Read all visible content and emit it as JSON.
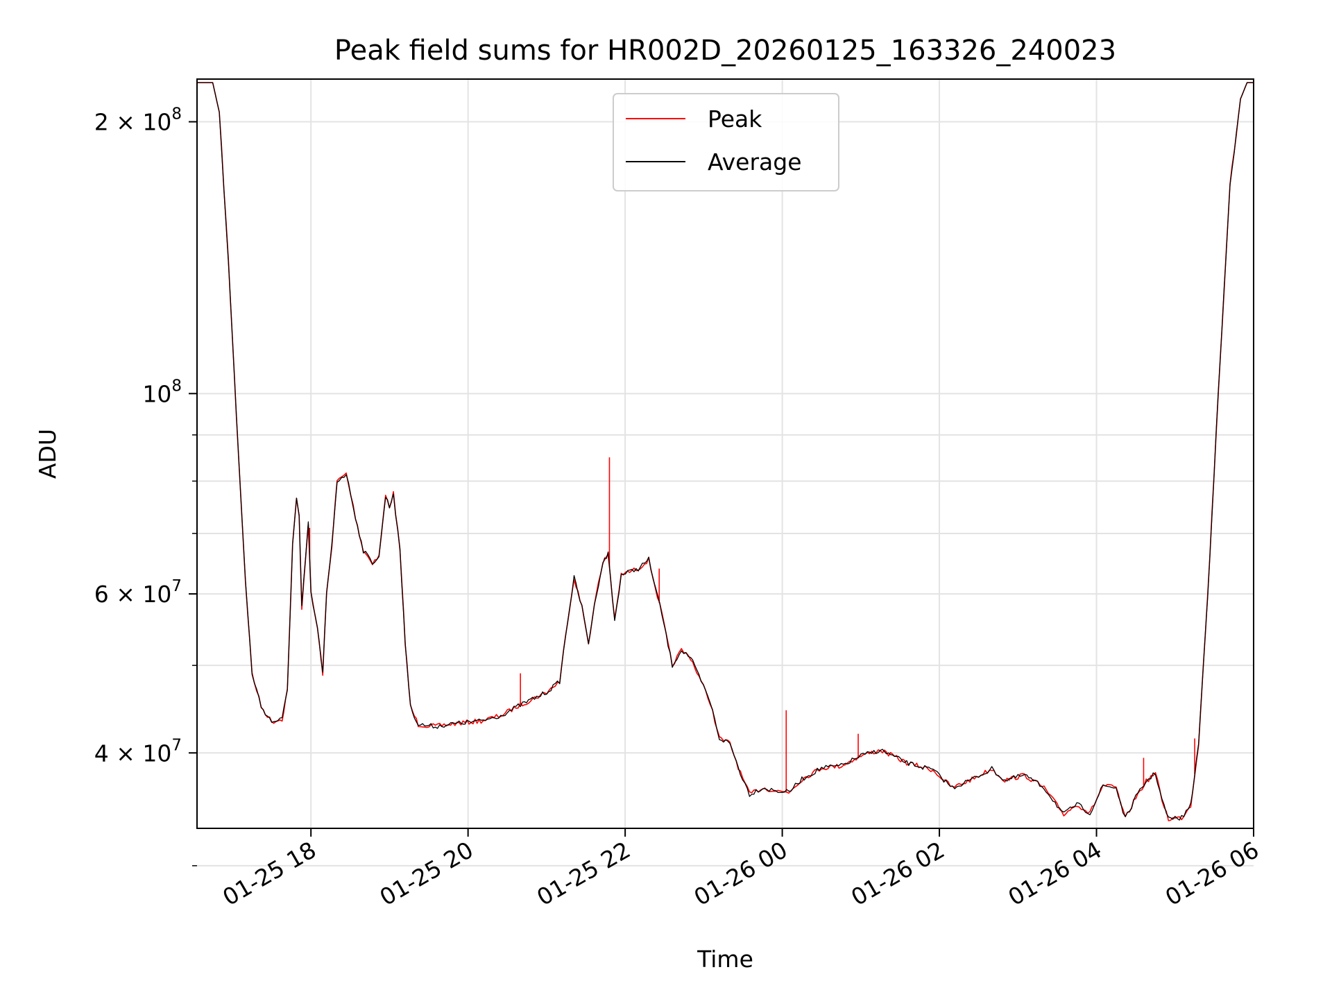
{
  "chart_data": {
    "type": "line",
    "title": "Peak field sums for HR002D_20260125_163326_240023",
    "xlabel": "Time",
    "ylabel": "ADU",
    "yscale": "log",
    "xlim": [
      "2026-01-25 16:33",
      "2026-01-26 06:00"
    ],
    "ylim": [
      33000000,
      223000000
    ],
    "x_ticks": [
      {
        "time": "2026-01-25 18:00",
        "label": "01-25 18"
      },
      {
        "time": "2026-01-25 20:00",
        "label": "01-25 20"
      },
      {
        "time": "2026-01-25 22:00",
        "label": "01-25 22"
      },
      {
        "time": "2026-01-26 00:00",
        "label": "01-26 00"
      },
      {
        "time": "2026-01-26 02:00",
        "label": "01-26 02"
      },
      {
        "time": "2026-01-26 04:00",
        "label": "01-26 04"
      },
      {
        "time": "2026-01-26 06:00",
        "label": "01-26 06"
      }
    ],
    "y_major_ticks": [
      {
        "value": 100000000,
        "mantissa": "",
        "base": "10",
        "exp": "8"
      },
      {
        "value": 200000000,
        "mantissa": "2",
        "base": "10",
        "exp": "8"
      },
      {
        "value": 60000000,
        "mantissa": "6",
        "base": "10",
        "exp": "7"
      },
      {
        "value": 40000000,
        "mantissa": "4",
        "base": "10",
        "exp": "7"
      }
    ],
    "y_minor_ticks": [
      30000000,
      50000000,
      70000000,
      80000000,
      90000000
    ],
    "grid": true,
    "legend_position": "upper center",
    "series": [
      {
        "name": "Peak",
        "color": "#ff0000",
        "points": [
          [
            "2026-01-25 16:33",
            221000000
          ],
          [
            "2026-01-25 16:45",
            221000000
          ],
          [
            "2026-01-25 16:50",
            205000000
          ],
          [
            "2026-01-25 16:57",
            140000000
          ],
          [
            "2026-01-25 17:03",
            95000000
          ],
          [
            "2026-01-25 17:10",
            62000000
          ],
          [
            "2026-01-25 17:15",
            49000000
          ],
          [
            "2026-01-25 17:22",
            45000000
          ],
          [
            "2026-01-25 17:30",
            43300000
          ],
          [
            "2026-01-25 17:38",
            43600000
          ],
          [
            "2026-01-25 17:42",
            47000000
          ],
          [
            "2026-01-25 17:46",
            68000000
          ],
          [
            "2026-01-25 17:49",
            76500000
          ],
          [
            "2026-01-25 17:51",
            73000000
          ],
          [
            "2026-01-25 17:53",
            58000000
          ],
          [
            "2026-01-25 17:56",
            66000000
          ],
          [
            "2026-01-25 17:58",
            72000000
          ],
          [
            "2026-01-25 18:00",
            60000000
          ],
          [
            "2026-01-25 18:05",
            55000000
          ],
          [
            "2026-01-25 18:09",
            49000000
          ],
          [
            "2026-01-25 18:12",
            60000000
          ],
          [
            "2026-01-25 18:16",
            68000000
          ],
          [
            "2026-01-25 18:20",
            80000000
          ],
          [
            "2026-01-25 18:27",
            81500000
          ],
          [
            "2026-01-25 18:34",
            73000000
          ],
          [
            "2026-01-25 18:40",
            67000000
          ],
          [
            "2026-01-25 18:47",
            65000000
          ],
          [
            "2026-01-25 18:52",
            66000000
          ],
          [
            "2026-01-25 18:57",
            77000000
          ],
          [
            "2026-01-25 19:00",
            75000000
          ],
          [
            "2026-01-25 19:03",
            77500000
          ],
          [
            "2026-01-25 19:08",
            67000000
          ],
          [
            "2026-01-25 19:12",
            53000000
          ],
          [
            "2026-01-25 19:16",
            45000000
          ],
          [
            "2026-01-25 19:22",
            43000000
          ],
          [
            "2026-01-25 19:35",
            42800000
          ],
          [
            "2026-01-25 19:50",
            43100000
          ],
          [
            "2026-01-25 20:10",
            43400000
          ],
          [
            "2026-01-25 20:25",
            44000000
          ],
          [
            "2026-01-25 20:40",
            45200000
          ],
          [
            "2026-01-25 21:00",
            46700000
          ],
          [
            "2026-01-25 21:10",
            48000000
          ],
          [
            "2026-01-25 21:16",
            56000000
          ],
          [
            "2026-01-25 21:21",
            62500000
          ],
          [
            "2026-01-25 21:27",
            58000000
          ],
          [
            "2026-01-25 21:32",
            53000000
          ],
          [
            "2026-01-25 21:38",
            60000000
          ],
          [
            "2026-01-25 21:43",
            65000000
          ],
          [
            "2026-01-25 21:47",
            66500000
          ],
          [
            "2026-01-25 21:52",
            56000000
          ],
          [
            "2026-01-25 21:57",
            63000000
          ],
          [
            "2026-01-25 22:10",
            64000000
          ],
          [
            "2026-01-25 22:18",
            65500000
          ],
          [
            "2026-01-25 22:28",
            57000000
          ],
          [
            "2026-01-25 22:36",
            50000000
          ],
          [
            "2026-01-25 22:43",
            52000000
          ],
          [
            "2026-01-25 22:50",
            51000000
          ],
          [
            "2026-01-25 22:58",
            48000000
          ],
          [
            "2026-01-25 23:05",
            45500000
          ],
          [
            "2026-01-25 23:12",
            41500000
          ],
          [
            "2026-01-25 23:20",
            41000000
          ],
          [
            "2026-01-25 23:28",
            38000000
          ],
          [
            "2026-01-25 23:35",
            36000000
          ],
          [
            "2026-01-25 23:45",
            36600000
          ],
          [
            "2026-01-25 23:55",
            36300000
          ],
          [
            "2026-01-26 00:05",
            36200000
          ],
          [
            "2026-01-26 00:15",
            37400000
          ],
          [
            "2026-01-26 00:30",
            38500000
          ],
          [
            "2026-01-26 00:45",
            38700000
          ],
          [
            "2026-01-26 01:00",
            39700000
          ],
          [
            "2026-01-26 01:15",
            40300000
          ],
          [
            "2026-01-26 01:35",
            39000000
          ],
          [
            "2026-01-26 01:55",
            38300000
          ],
          [
            "2026-01-26 02:10",
            36600000
          ],
          [
            "2026-01-26 02:25",
            37400000
          ],
          [
            "2026-01-26 02:40",
            38400000
          ],
          [
            "2026-01-26 02:50",
            37300000
          ],
          [
            "2026-01-26 03:05",
            37800000
          ],
          [
            "2026-01-26 03:20",
            36600000
          ],
          [
            "2026-01-26 03:35",
            34200000
          ],
          [
            "2026-01-26 03:45",
            35100000
          ],
          [
            "2026-01-26 03:55",
            34300000
          ],
          [
            "2026-01-26 04:05",
            36800000
          ],
          [
            "2026-01-26 04:15",
            36600000
          ],
          [
            "2026-01-26 04:22",
            33800000
          ],
          [
            "2026-01-26 04:30",
            35700000
          ],
          [
            "2026-01-26 04:38",
            37200000
          ],
          [
            "2026-01-26 04:45",
            38000000
          ],
          [
            "2026-01-26 04:50",
            35500000
          ],
          [
            "2026-01-26 04:55",
            33800000
          ],
          [
            "2026-01-26 05:05",
            33900000
          ],
          [
            "2026-01-26 05:12",
            35000000
          ],
          [
            "2026-01-26 05:18",
            41000000
          ],
          [
            "2026-01-26 05:25",
            60000000
          ],
          [
            "2026-01-26 05:33",
            100000000
          ],
          [
            "2026-01-26 05:42",
            170000000
          ],
          [
            "2026-01-26 05:50",
            212000000
          ],
          [
            "2026-01-26 05:55",
            221000000
          ],
          [
            "2026-01-26 06:00",
            221000000
          ]
        ],
        "spikes": [
          [
            "2026-01-25 17:59",
            71000000
          ],
          [
            "2026-01-25 20:40",
            49000000
          ],
          [
            "2026-01-25 21:48",
            85000000
          ],
          [
            "2026-01-25 22:26",
            64000000
          ],
          [
            "2026-01-26 00:03",
            44600000
          ],
          [
            "2026-01-26 00:58",
            42000000
          ],
          [
            "2026-01-26 04:36",
            39500000
          ],
          [
            "2026-01-26 05:15",
            41500000
          ]
        ]
      },
      {
        "name": "Average",
        "color": "#000000",
        "points": [
          [
            "2026-01-25 16:33",
            221000000
          ],
          [
            "2026-01-25 16:45",
            221000000
          ],
          [
            "2026-01-25 16:50",
            205000000
          ],
          [
            "2026-01-25 16:57",
            140000000
          ],
          [
            "2026-01-25 17:03",
            95000000
          ],
          [
            "2026-01-25 17:10",
            62000000
          ],
          [
            "2026-01-25 17:15",
            49000000
          ],
          [
            "2026-01-25 17:22",
            45000000
          ],
          [
            "2026-01-25 17:30",
            43300000
          ],
          [
            "2026-01-25 17:38",
            43600000
          ],
          [
            "2026-01-25 17:42",
            47000000
          ],
          [
            "2026-01-25 17:46",
            68000000
          ],
          [
            "2026-01-25 17:49",
            76500000
          ],
          [
            "2026-01-25 17:51",
            73000000
          ],
          [
            "2026-01-25 17:53",
            58000000
          ],
          [
            "2026-01-25 17:56",
            66000000
          ],
          [
            "2026-01-25 17:58",
            72000000
          ],
          [
            "2026-01-25 18:00",
            60000000
          ],
          [
            "2026-01-25 18:05",
            55000000
          ],
          [
            "2026-01-25 18:09",
            49000000
          ],
          [
            "2026-01-25 18:12",
            60000000
          ],
          [
            "2026-01-25 18:16",
            68000000
          ],
          [
            "2026-01-25 18:20",
            80000000
          ],
          [
            "2026-01-25 18:27",
            81500000
          ],
          [
            "2026-01-25 18:34",
            73000000
          ],
          [
            "2026-01-25 18:40",
            67000000
          ],
          [
            "2026-01-25 18:47",
            65000000
          ],
          [
            "2026-01-25 18:52",
            66000000
          ],
          [
            "2026-01-25 18:57",
            77000000
          ],
          [
            "2026-01-25 19:00",
            75000000
          ],
          [
            "2026-01-25 19:03",
            77500000
          ],
          [
            "2026-01-25 19:08",
            67000000
          ],
          [
            "2026-01-25 19:12",
            53000000
          ],
          [
            "2026-01-25 19:16",
            45000000
          ],
          [
            "2026-01-25 19:22",
            43000000
          ],
          [
            "2026-01-25 19:35",
            42800000
          ],
          [
            "2026-01-25 19:50",
            43100000
          ],
          [
            "2026-01-25 20:10",
            43400000
          ],
          [
            "2026-01-25 20:25",
            44000000
          ],
          [
            "2026-01-25 20:40",
            45200000
          ],
          [
            "2026-01-25 21:00",
            46700000
          ],
          [
            "2026-01-25 21:10",
            48000000
          ],
          [
            "2026-01-25 21:16",
            56000000
          ],
          [
            "2026-01-25 21:21",
            62500000
          ],
          [
            "2026-01-25 21:27",
            58000000
          ],
          [
            "2026-01-25 21:32",
            53000000
          ],
          [
            "2026-01-25 21:38",
            60000000
          ],
          [
            "2026-01-25 21:43",
            65000000
          ],
          [
            "2026-01-25 21:47",
            66500000
          ],
          [
            "2026-01-25 21:52",
            56000000
          ],
          [
            "2026-01-25 21:57",
            63000000
          ],
          [
            "2026-01-25 22:10",
            64000000
          ],
          [
            "2026-01-25 22:18",
            65500000
          ],
          [
            "2026-01-25 22:28",
            57000000
          ],
          [
            "2026-01-25 22:36",
            50000000
          ],
          [
            "2026-01-25 22:43",
            52000000
          ],
          [
            "2026-01-25 22:50",
            51000000
          ],
          [
            "2026-01-25 22:58",
            48000000
          ],
          [
            "2026-01-25 23:05",
            45500000
          ],
          [
            "2026-01-25 23:12",
            41500000
          ],
          [
            "2026-01-25 23:20",
            41000000
          ],
          [
            "2026-01-25 23:28",
            38000000
          ],
          [
            "2026-01-25 23:35",
            36000000
          ],
          [
            "2026-01-25 23:45",
            36600000
          ],
          [
            "2026-01-25 23:55",
            36300000
          ],
          [
            "2026-01-26 00:05",
            36200000
          ],
          [
            "2026-01-26 00:15",
            37400000
          ],
          [
            "2026-01-26 00:30",
            38500000
          ],
          [
            "2026-01-26 00:45",
            38700000
          ],
          [
            "2026-01-26 01:00",
            39700000
          ],
          [
            "2026-01-26 01:15",
            40300000
          ],
          [
            "2026-01-26 01:35",
            39000000
          ],
          [
            "2026-01-26 01:55",
            38300000
          ],
          [
            "2026-01-26 02:10",
            36600000
          ],
          [
            "2026-01-26 02:25",
            37400000
          ],
          [
            "2026-01-26 02:40",
            38400000
          ],
          [
            "2026-01-26 02:50",
            37300000
          ],
          [
            "2026-01-26 03:05",
            37800000
          ],
          [
            "2026-01-26 03:20",
            36600000
          ],
          [
            "2026-01-26 03:35",
            34200000
          ],
          [
            "2026-01-26 03:45",
            35100000
          ],
          [
            "2026-01-26 03:55",
            34300000
          ],
          [
            "2026-01-26 04:05",
            36800000
          ],
          [
            "2026-01-26 04:15",
            36600000
          ],
          [
            "2026-01-26 04:22",
            33800000
          ],
          [
            "2026-01-26 04:30",
            35700000
          ],
          [
            "2026-01-26 04:38",
            37200000
          ],
          [
            "2026-01-26 04:45",
            38000000
          ],
          [
            "2026-01-26 04:50",
            35500000
          ],
          [
            "2026-01-26 04:55",
            33800000
          ],
          [
            "2026-01-26 05:05",
            33900000
          ],
          [
            "2026-01-26 05:12",
            35000000
          ],
          [
            "2026-01-26 05:18",
            41000000
          ],
          [
            "2026-01-26 05:25",
            60000000
          ],
          [
            "2026-01-26 05:33",
            100000000
          ],
          [
            "2026-01-26 05:42",
            170000000
          ],
          [
            "2026-01-26 05:50",
            212000000
          ],
          [
            "2026-01-26 05:55",
            221000000
          ],
          [
            "2026-01-26 06:00",
            221000000
          ]
        ]
      }
    ]
  }
}
